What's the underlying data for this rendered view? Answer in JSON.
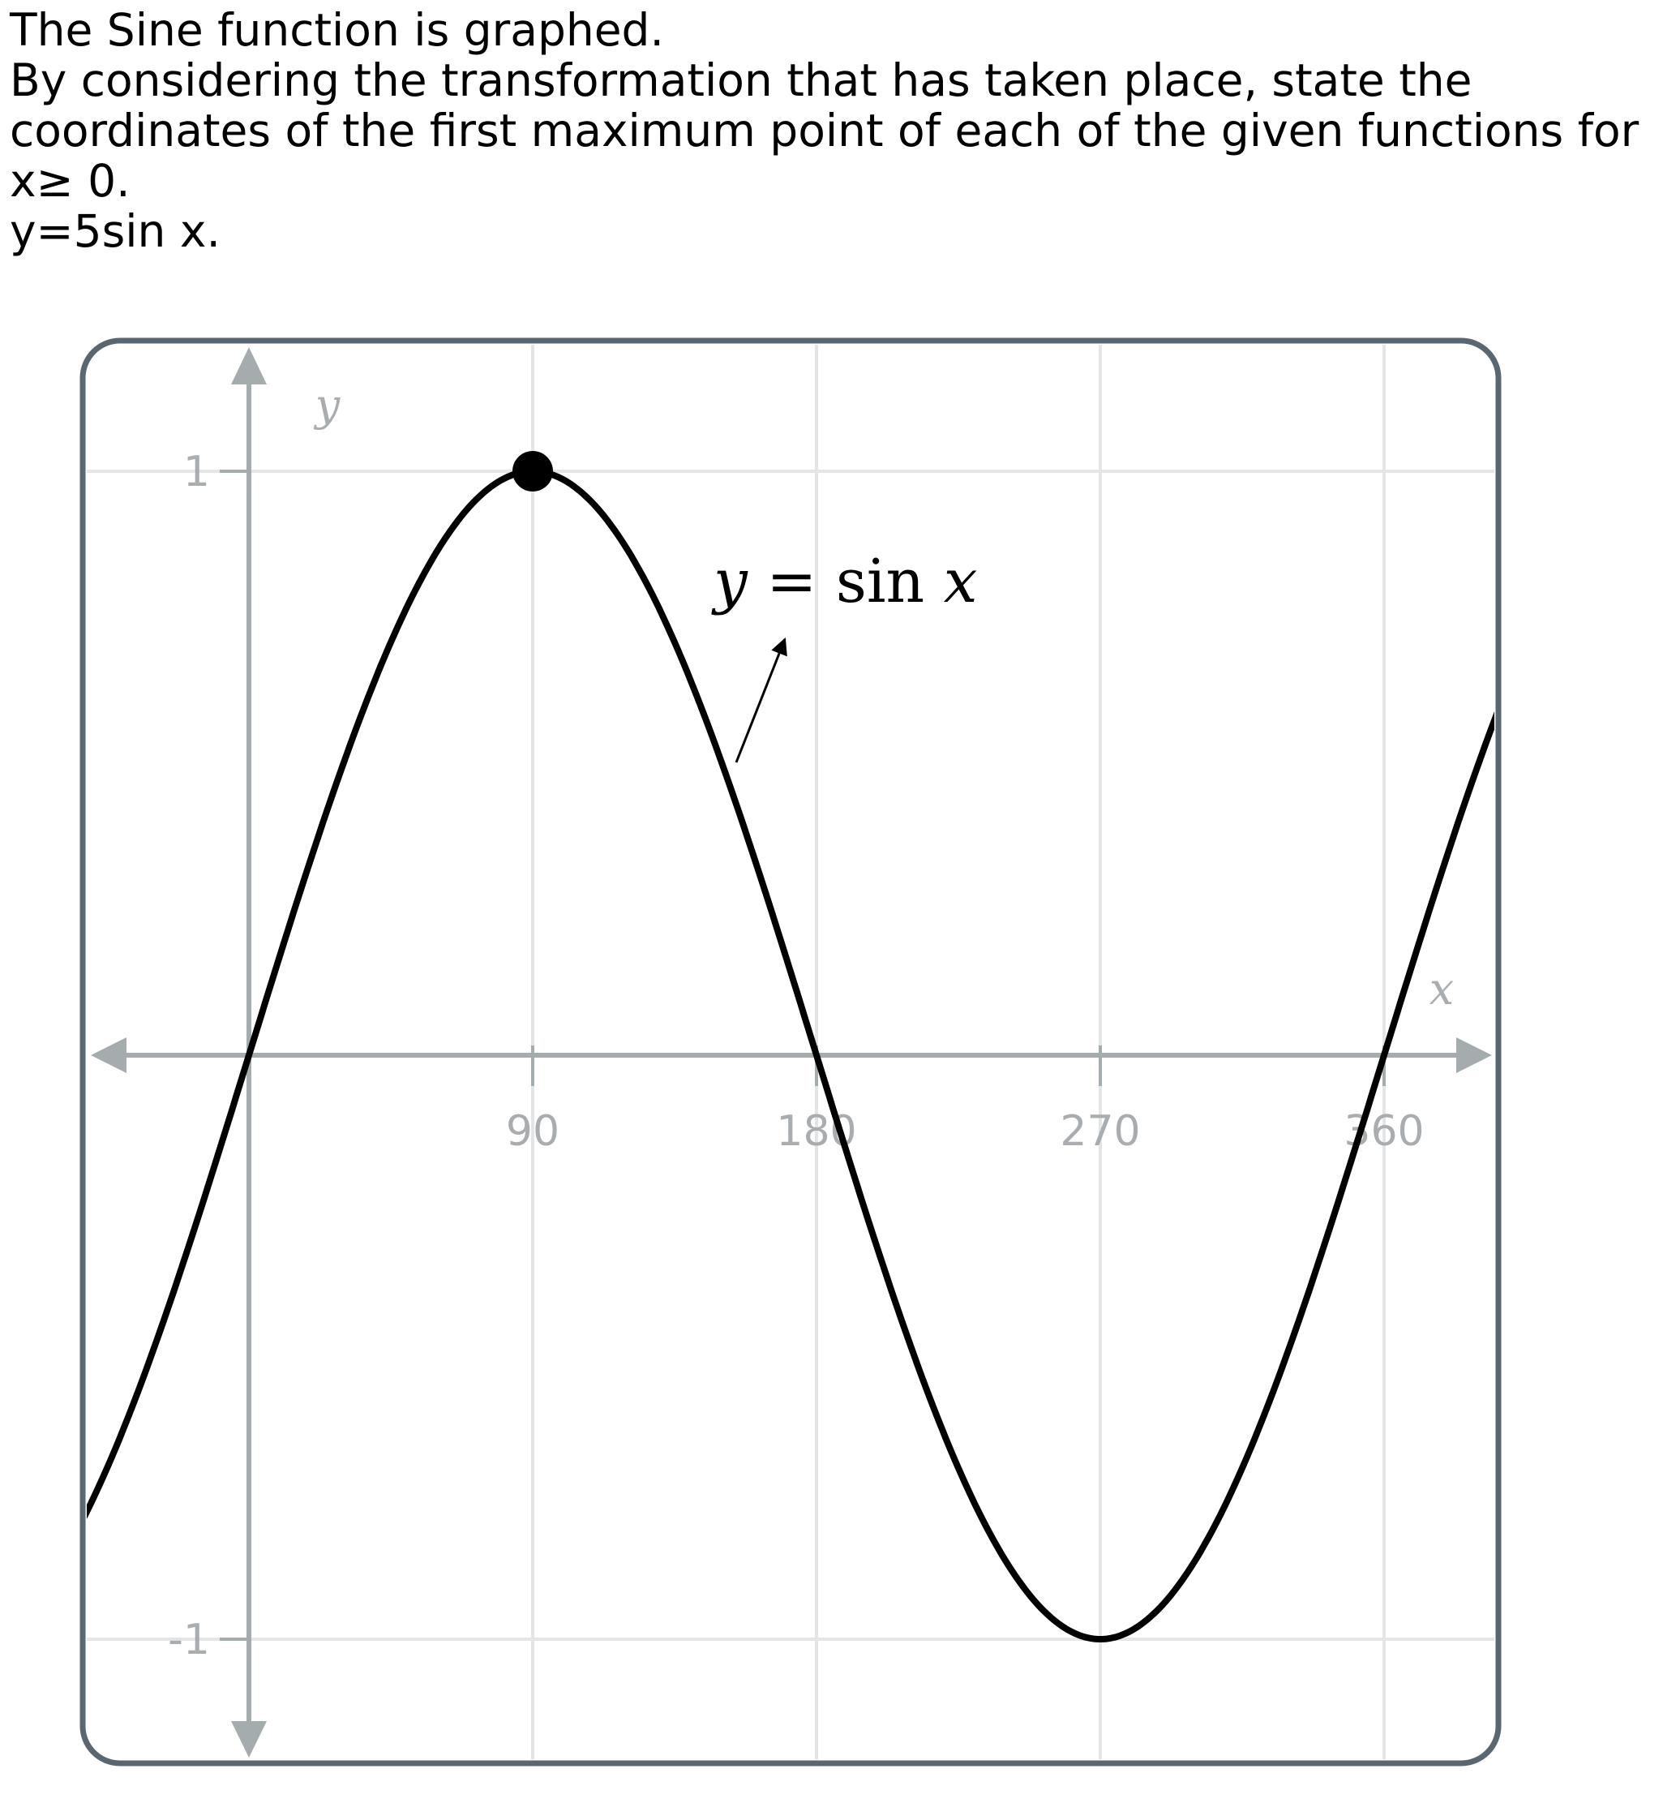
{
  "question": {
    "lines": [
      "The Sine function is graphed.",
      "By considering the transformation that has taken place, state the",
      "coordinates of the first maximum point of each of the given functions for",
      "x≥  0.",
      "y=5sin x."
    ]
  },
  "chart_data": {
    "type": "line",
    "x_range": [
      -60,
      440
    ],
    "y_range": [
      -1.2,
      1.2
    ],
    "x_ticks": [
      90,
      180,
      270,
      360
    ],
    "x_tick_labels": [
      "90",
      "180",
      "270",
      "360"
    ],
    "y_ticks": [
      1,
      -1
    ],
    "y_tick_labels": [
      "1",
      "-1"
    ],
    "xlabel": "x",
    "ylabel": "y",
    "grid": true,
    "series": [
      {
        "name": "y = sin x",
        "function": "sin(x)",
        "x_unit": "degrees",
        "color": "#000000"
      }
    ],
    "marked_point": {
      "x": 90,
      "y": 1
    },
    "curve_label": {
      "y_part": "y",
      "eq_part": " = sin ",
      "x_part": "x"
    }
  }
}
